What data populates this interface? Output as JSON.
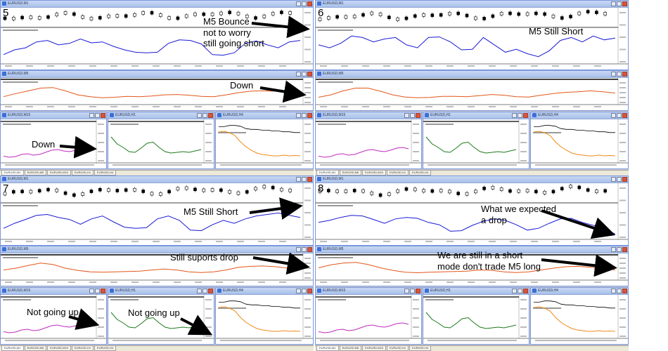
{
  "screenshots": [
    {
      "number": "5",
      "windows": {
        "a": "EURUSD,M1",
        "b": "EURUSD,M5",
        "c": "EURUSD,M15",
        "d": "EURUSD,H1",
        "e": "EURUSD,H4"
      },
      "tabs": [
        "EURUSD,M1",
        "EURUSD,M5",
        "EURUSD,M15",
        "EURUSD,H1",
        "EURUSD,H4"
      ]
    },
    {
      "number": "6",
      "windows": {
        "a": "EURUSD,M1",
        "b": "EURUSD,M5",
        "c": "EURUSD,M15",
        "d": "EURUSD,H1",
        "e": "EURUSD,H4"
      },
      "tabs": [
        "EURUSD,M1",
        "EURUSD,M5",
        "EURUSD,M15",
        "EURUSD,H1",
        "EURUSD,H4"
      ]
    },
    {
      "number": "7",
      "windows": {
        "a": "EURUSD,M1",
        "b": "EURUSD,M5",
        "c": "EURUSD,M15",
        "d": "EURUSD,H1",
        "e": "EURUSD,H4"
      },
      "tabs": [
        "EURUSD,M1",
        "EURUSD,M5",
        "EURUSD,M15",
        "EURUSD,H1",
        "EURUSD,H4"
      ]
    },
    {
      "number": "8",
      "windows": {
        "a": "EURUSD,M1",
        "b": "EURUSD,M5",
        "c": "EURUSD,M15",
        "d": "EURUSD,H1",
        "e": "EURUSD,H4"
      },
      "tabs": [
        "EURUSD,M1",
        "EURUSD,M5",
        "EURUSD,M15",
        "EURUSD,H1",
        "EURUSD,H4"
      ]
    }
  ],
  "annotations": {
    "q1_main": "M5 Bounce\nnot to worry\nstill going short",
    "q1_middle": "Down",
    "q1_bottom": "Down",
    "q2_main": "M5 Still Short",
    "q3_main": "M5 Still Short",
    "q3_middle": "Still suports drop",
    "q3_bottom_left": "Not going up",
    "q3_bottom_mid": "Not going up",
    "q4_main": "What we expected\na drop",
    "q4_middle": "We are still in a short\nmode don't trade M5 long"
  },
  "colors": {
    "main_line": "#1a1ad6",
    "middle_line": "#e2571b",
    "magenta_line": "#c02ac0",
    "green_line": "#1c7a1c",
    "orange_line": "#f08a18",
    "black_line": "#000000",
    "arrow": "#000000",
    "window_border": "#7a96df"
  }
}
